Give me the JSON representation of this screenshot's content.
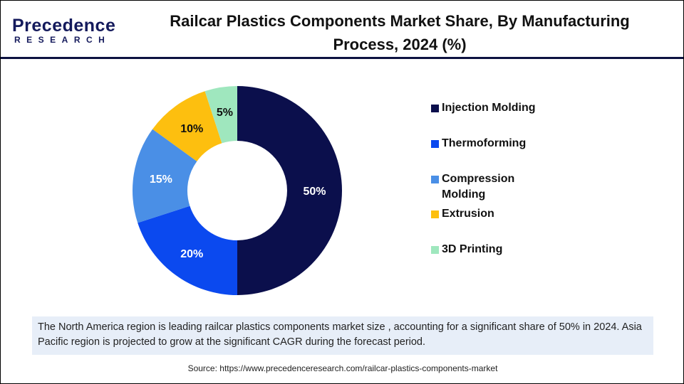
{
  "logo": {
    "line1": "Precedence",
    "line2": "RESEARCH"
  },
  "title": "Railcar Plastics Components Market Share, By Manufacturing Process, 2024 (%)",
  "chart_data": {
    "type": "pie",
    "donut": true,
    "title": "Railcar Plastics Components Market Share, By Manufacturing Process, 2024 (%)",
    "categories": [
      "Injection Molding",
      "Thermoforming",
      "Compression Molding",
      "Extrusion",
      "3D Printing"
    ],
    "values": [
      50,
      20,
      15,
      10,
      5
    ],
    "data_labels": [
      "50%",
      "20%",
      "15%",
      "10%",
      "5%"
    ],
    "colors": [
      "#0b0f4c",
      "#0b49ef",
      "#4a8fe6",
      "#fdbf0f",
      "#9fe7be"
    ],
    "legend_position": "right"
  },
  "note": "The North America region is leading railcar plastics components market size , accounting for a significant share of 50% in 2024. Asia Pacific region is projected to grow at the significant CAGR during the forecast period.",
  "source": "Source: https://www.precedenceresearch.com/railcar-plastics-components-market"
}
